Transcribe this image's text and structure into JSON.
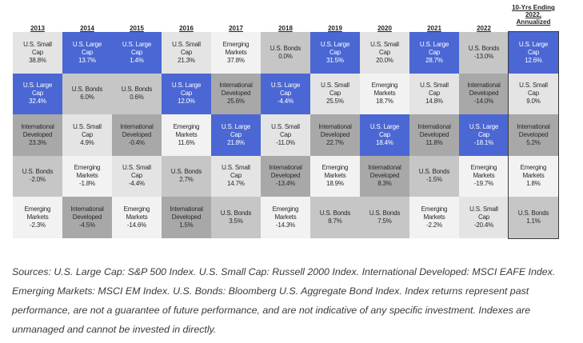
{
  "chart_data": {
    "type": "table",
    "columns": [
      "2013",
      "2014",
      "2015",
      "2016",
      "2017",
      "2018",
      "2019",
      "2020",
      "2021",
      "2022",
      "10-Yrs Ending 2022, Annualized"
    ],
    "rows": [
      [
        {
          "label": "U.S. Small Cap",
          "value": "38.8%"
        },
        {
          "label": "U.S. Large Cap",
          "value": "13.7%"
        },
        {
          "label": "U.S. Large Cap",
          "value": "1.4%"
        },
        {
          "label": "U.S. Small Cap",
          "value": "21.3%"
        },
        {
          "label": "Emerging Markets",
          "value": "37.8%"
        },
        {
          "label": "U.S. Bonds",
          "value": "0.0%"
        },
        {
          "label": "U.S. Large Cap",
          "value": "31.5%"
        },
        {
          "label": "U.S. Small Cap",
          "value": "20.0%"
        },
        {
          "label": "U.S. Large Cap",
          "value": "28.7%"
        },
        {
          "label": "U.S. Bonds",
          "value": "-13.0%"
        },
        {
          "label": "U.S. Large Cap",
          "value": "12.6%"
        }
      ],
      [
        {
          "label": "U.S. Large Cap",
          "value": "32.4%"
        },
        {
          "label": "U.S. Bonds",
          "value": "6.0%"
        },
        {
          "label": "U.S. Bonds",
          "value": "0.6%"
        },
        {
          "label": "U.S. Large Cap",
          "value": "12.0%"
        },
        {
          "label": "International Developed",
          "value": "25.6%"
        },
        {
          "label": "U.S. Large Cap",
          "value": "-4.4%"
        },
        {
          "label": "U.S. Small Cap",
          "value": "25.5%"
        },
        {
          "label": "Emerging Markets",
          "value": "18.7%"
        },
        {
          "label": "U.S. Small Cap",
          "value": "14.8%"
        },
        {
          "label": "International Developed",
          "value": "-14.0%"
        },
        {
          "label": "U.S. Small Cap",
          "value": "9.0%"
        }
      ],
      [
        {
          "label": "International Developed",
          "value": "23.3%"
        },
        {
          "label": "U.S. Small Cap",
          "value": "4.9%"
        },
        {
          "label": "International Developed",
          "value": "-0.4%"
        },
        {
          "label": "Emerging Markets",
          "value": "11.6%"
        },
        {
          "label": "U.S. Large Cap",
          "value": "21.8%"
        },
        {
          "label": "U.S. Small Cap",
          "value": "-11.0%"
        },
        {
          "label": "International Developed",
          "value": "22.7%"
        },
        {
          "label": "U.S. Large Cap",
          "value": "18.4%"
        },
        {
          "label": "International Developed",
          "value": "11.8%"
        },
        {
          "label": "U.S. Large Cap",
          "value": "-18.1%"
        },
        {
          "label": "International Developed",
          "value": "5.2%"
        }
      ],
      [
        {
          "label": "U.S. Bonds",
          "value": "-2.0%"
        },
        {
          "label": "Emerging Markets",
          "value": "-1.8%"
        },
        {
          "label": "U.S. Small Cap",
          "value": "-4.4%"
        },
        {
          "label": "U.S. Bonds",
          "value": "2.7%"
        },
        {
          "label": "U.S. Small Cap",
          "value": "14.7%"
        },
        {
          "label": "International Developed",
          "value": "-13.4%"
        },
        {
          "label": "Emerging Markets",
          "value": "18.9%"
        },
        {
          "label": "International Developed",
          "value": "8.3%"
        },
        {
          "label": "U.S. Bonds",
          "value": "-1.5%"
        },
        {
          "label": "Emerging Markets",
          "value": "-19.7%"
        },
        {
          "label": "Emerging Markets",
          "value": "1.8%"
        }
      ],
      [
        {
          "label": "Emerging Markets",
          "value": "-2.3%"
        },
        {
          "label": "International Developed",
          "value": "-4.5%"
        },
        {
          "label": "Emerging Markets",
          "value": "-14.6%"
        },
        {
          "label": "International Developed",
          "value": "1.5%"
        },
        {
          "label": "U.S. Bonds",
          "value": "3.5%"
        },
        {
          "label": "Emerging Markets",
          "value": "-14.3%"
        },
        {
          "label": "U.S. Bonds",
          "value": "8.7%"
        },
        {
          "label": "U.S. Bonds",
          "value": "7.5%"
        },
        {
          "label": "Emerging Markets",
          "value": "-2.2%"
        },
        {
          "label": "U.S. Small Cap",
          "value": "-20.4%"
        },
        {
          "label": "U.S. Bonds",
          "value": "1.1%"
        }
      ]
    ],
    "asset_colors": {
      "U.S. Large Cap": "#4a67d3",
      "U.S. Small Cap": "#e4e4e4",
      "International Developed": "#a8a8a8",
      "Emerging Markets": "#f2f2f2",
      "U.S. Bonds": "#c6c6c6"
    },
    "text_colors": {
      "U.S. Large Cap": "#ffffff",
      "default": "#2a2a2a"
    }
  },
  "sources_text": "Sources: U.S. Large Cap: S&P 500 Index. U.S. Small Cap: Russell 2000 Index. International Developed: MSCI EAFE Index. Emerging Markets: MSCI EM Index. U.S. Bonds: Bloomberg U.S. Aggregate Bond Index. Index returns represent past performance, are not a guarantee of future performance, and are not indicative of any specific investment. Indexes are unmanaged and cannot be invested in directly."
}
